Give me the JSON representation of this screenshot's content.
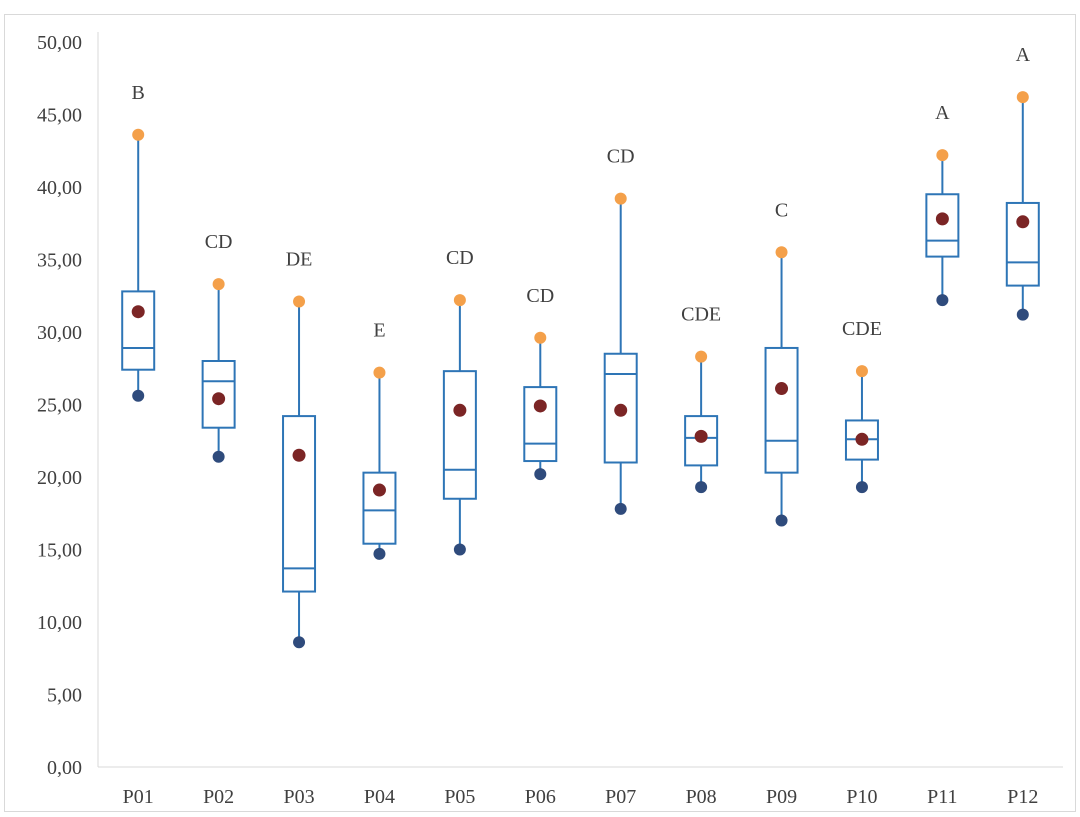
{
  "chart_data": {
    "type": "box",
    "categories": [
      "P01",
      "P02",
      "P03",
      "P04",
      "P05",
      "P06",
      "P07",
      "P08",
      "P09",
      "P10",
      "P11",
      "P12"
    ],
    "y_ticks": [
      "0,00",
      "5,00",
      "10,00",
      "15,00",
      "20,00",
      "25,00",
      "30,00",
      "35,00",
      "40,00",
      "45,00",
      "50,00"
    ],
    "ylim": [
      0,
      50
    ],
    "grid": false,
    "boxes": [
      {
        "category": "P01",
        "min": 25.6,
        "q1": 27.4,
        "median": 28.9,
        "q3": 32.8,
        "max": 43.6,
        "mean": 31.4,
        "letter": "B"
      },
      {
        "category": "P02",
        "min": 21.4,
        "q1": 23.4,
        "median": 26.6,
        "q3": 28.0,
        "max": 33.3,
        "mean": 25.4,
        "letter": "CD"
      },
      {
        "category": "P03",
        "min": 8.6,
        "q1": 12.1,
        "median": 13.7,
        "q3": 24.2,
        "max": 32.1,
        "mean": 21.5,
        "letter": "DE"
      },
      {
        "category": "P04",
        "min": 14.7,
        "q1": 15.4,
        "median": 17.7,
        "q3": 20.3,
        "max": 27.2,
        "mean": 19.1,
        "letter": "E"
      },
      {
        "category": "P05",
        "min": 15.0,
        "q1": 18.5,
        "median": 20.5,
        "q3": 27.3,
        "max": 32.2,
        "mean": 24.6,
        "letter": "CD"
      },
      {
        "category": "P06",
        "min": 20.2,
        "q1": 21.1,
        "median": 22.3,
        "q3": 26.2,
        "max": 29.6,
        "mean": 24.9,
        "letter": "CD"
      },
      {
        "category": "P07",
        "min": 17.8,
        "q1": 21.0,
        "median": 27.1,
        "q3": 28.5,
        "max": 39.2,
        "mean": 24.6,
        "letter": "CD"
      },
      {
        "category": "P08",
        "min": 19.3,
        "q1": 20.8,
        "median": 22.7,
        "q3": 24.2,
        "max": 28.3,
        "mean": 22.8,
        "letter": "CDE"
      },
      {
        "category": "P09",
        "min": 17.0,
        "q1": 20.3,
        "median": 22.5,
        "q3": 28.9,
        "max": 35.5,
        "mean": 26.1,
        "letter": "C"
      },
      {
        "category": "P10",
        "min": 19.3,
        "q1": 21.2,
        "median": 22.6,
        "q3": 23.9,
        "max": 27.3,
        "mean": 22.6,
        "letter": "CDE"
      },
      {
        "category": "P11",
        "min": 32.2,
        "q1": 35.2,
        "median": 36.3,
        "q3": 39.5,
        "max": 42.2,
        "mean": 37.8,
        "letter": "A"
      },
      {
        "category": "P12",
        "min": 31.2,
        "q1": 33.2,
        "median": 34.8,
        "q3": 38.9,
        "max": 46.2,
        "mean": 37.6,
        "letter": "A"
      }
    ],
    "colors": {
      "box": "#2e75b6",
      "min_marker": "#2f4b7c",
      "max_marker": "#f4a04a",
      "mean_marker": "#7b2525",
      "axis": "#d9d9d9",
      "text": "#404040"
    }
  }
}
